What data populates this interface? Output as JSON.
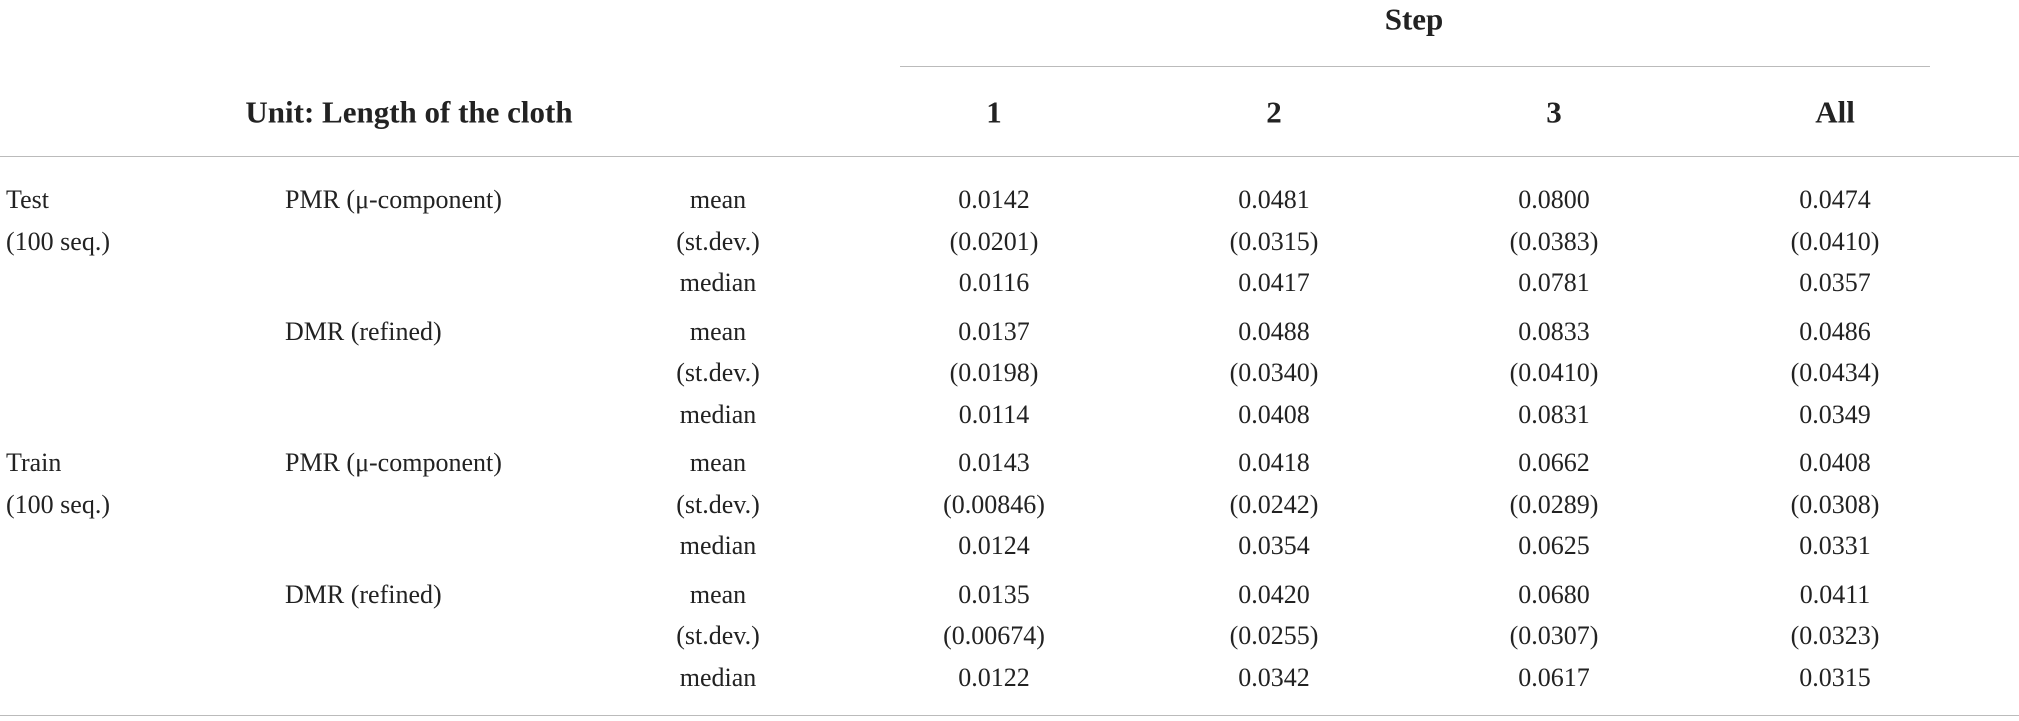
{
  "table": {
    "unit": "Unit: Length of the cloth",
    "step": "Step",
    "columns": [
      "1",
      "2",
      "3",
      "All"
    ],
    "groups": [
      {
        "set": [
          "Test",
          "(100 seq.)"
        ],
        "methods": [
          {
            "name": "PMR (μ-component)",
            "rows": [
              {
                "stat": "mean",
                "values": [
                  "0.0142",
                  "0.0481",
                  "0.0800",
                  "0.0474"
                ]
              },
              {
                "stat": "(st.dev.)",
                "values": [
                  "(0.0201)",
                  "(0.0315)",
                  "(0.0383)",
                  "(0.0410)"
                ]
              },
              {
                "stat": "median",
                "values": [
                  "0.0116",
                  "0.0417",
                  "0.0781",
                  "0.0357"
                ]
              }
            ]
          },
          {
            "name": "DMR (refined)",
            "rows": [
              {
                "stat": "mean",
                "values": [
                  "0.0137",
                  "0.0488",
                  "0.0833",
                  "0.0486"
                ]
              },
              {
                "stat": "(st.dev.)",
                "values": [
                  "(0.0198)",
                  "(0.0340)",
                  "(0.0410)",
                  "(0.0434)"
                ]
              },
              {
                "stat": "median",
                "values": [
                  "0.0114",
                  "0.0408",
                  "0.0831",
                  "0.0349"
                ]
              }
            ]
          }
        ]
      },
      {
        "set": [
          "Train",
          "(100 seq.)"
        ],
        "methods": [
          {
            "name": "PMR (μ-component)",
            "rows": [
              {
                "stat": "mean",
                "values": [
                  "0.0143",
                  "0.0418",
                  "0.0662",
                  "0.0408"
                ]
              },
              {
                "stat": "(st.dev.)",
                "values": [
                  "(0.00846)",
                  "(0.0242)",
                  "(0.0289)",
                  "(0.0308)"
                ]
              },
              {
                "stat": "median",
                "values": [
                  "0.0124",
                  "0.0354",
                  "0.0625",
                  "0.0331"
                ]
              }
            ]
          },
          {
            "name": "DMR (refined)",
            "rows": [
              {
                "stat": "mean",
                "values": [
                  "0.0135",
                  "0.0420",
                  "0.0680",
                  "0.0411"
                ]
              },
              {
                "stat": "(st.dev.)",
                "values": [
                  "(0.00674)",
                  "(0.0255)",
                  "(0.0307)",
                  "(0.0323)"
                ]
              },
              {
                "stat": "median",
                "values": [
                  "0.0122",
                  "0.0342",
                  "0.0617",
                  "0.0315"
                ]
              }
            ]
          }
        ]
      }
    ]
  }
}
